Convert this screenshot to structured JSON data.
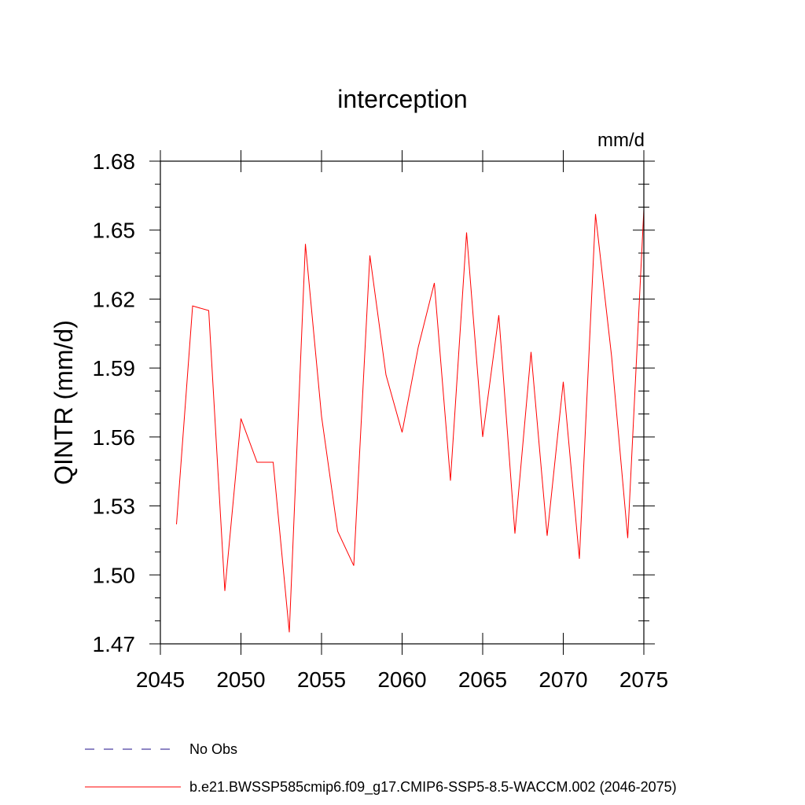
{
  "chart_data": {
    "type": "line",
    "title": "interception",
    "units_label": "mm/d",
    "ylabel": "QINTR  (mm/d)",
    "xlabel": "",
    "xlim": [
      2045,
      2075
    ],
    "ylim": [
      1.47,
      1.68
    ],
    "x_ticks": [
      2045,
      2050,
      2055,
      2060,
      2065,
      2070,
      2075
    ],
    "y_ticks": [
      1.47,
      1.5,
      1.53,
      1.56,
      1.59,
      1.62,
      1.65,
      1.68
    ],
    "y_tick_labels": [
      "1.47",
      "1.50",
      "1.53",
      "1.56",
      "1.59",
      "1.62",
      "1.65",
      "1.68"
    ],
    "x_tick_labels": [
      "2045",
      "2050",
      "2055",
      "2060",
      "2065",
      "2070",
      "2075"
    ],
    "grid": false,
    "series": [
      {
        "name": "b.e21.BWSSP585cmip6.f09_g17.CMIP6-SSP5-8.5-WACCM.002 (2046-2075)",
        "color": "#ff0000",
        "style": "solid",
        "x": [
          2046,
          2047,
          2048,
          2049,
          2050,
          2051,
          2052,
          2053,
          2054,
          2055,
          2056,
          2057,
          2058,
          2059,
          2060,
          2061,
          2062,
          2063,
          2064,
          2065,
          2066,
          2067,
          2068,
          2069,
          2070,
          2071,
          2072,
          2073,
          2074,
          2075
        ],
        "values": [
          1.522,
          1.617,
          1.615,
          1.493,
          1.568,
          1.549,
          1.549,
          1.475,
          1.644,
          1.569,
          1.519,
          1.504,
          1.639,
          1.587,
          1.562,
          1.599,
          1.627,
          1.541,
          1.649,
          1.56,
          1.613,
          1.518,
          1.597,
          1.517,
          1.584,
          1.507,
          1.657,
          1.595,
          1.516,
          1.659
        ]
      }
    ],
    "legend": [
      {
        "label": "No Obs",
        "color": "#4b3fa0",
        "style": "dashed"
      },
      {
        "label": "b.e21.BWSSP585cmip6.f09_g17.CMIP6-SSP5-8.5-WACCM.002 (2046-2075)",
        "color": "#ff0000",
        "style": "solid"
      }
    ],
    "legend_position": "bottom"
  }
}
